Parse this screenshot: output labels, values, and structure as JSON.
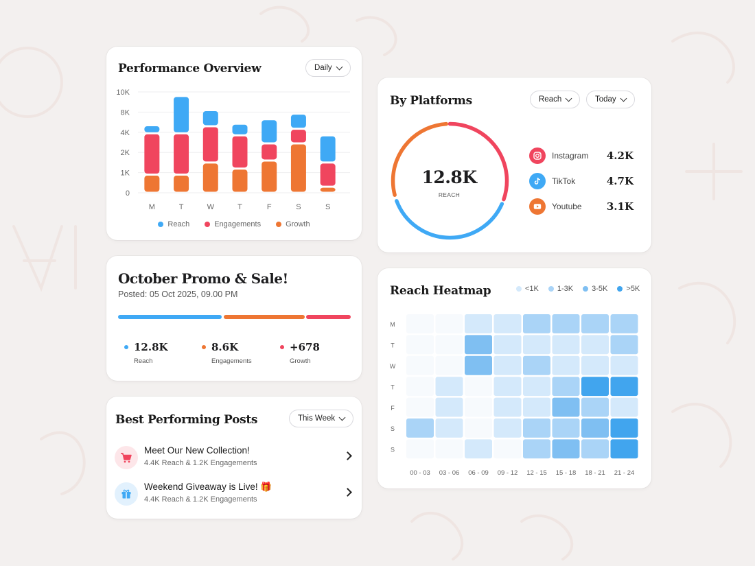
{
  "performance": {
    "title": "Performance Overview",
    "filter": "Daily",
    "legend": [
      {
        "label": "Reach",
        "color": "#3fa9f5"
      },
      {
        "label": "Engagements",
        "color": "#f0455e"
      },
      {
        "label": "Growth",
        "color": "#ee7633"
      }
    ]
  },
  "chart_data": {
    "type": "bar",
    "stacked": true,
    "categories": [
      "M",
      "T",
      "W",
      "T",
      "F",
      "S",
      "S"
    ],
    "yticks": [
      "10K",
      "8K",
      "4K",
      "2K",
      "1K",
      "0"
    ],
    "series": [
      {
        "name": "Growth",
        "color": "#ee7633",
        "values": [
          0.9,
          0.9,
          1.5,
          1.2,
          1.6,
          2.9,
          0.3
        ]
      },
      {
        "name": "Engagements",
        "color": "#f0455e",
        "values": [
          3.0,
          3.0,
          3.7,
          2.5,
          1.3,
          1.8,
          1.2
        ]
      },
      {
        "name": "Reach",
        "color": "#3fa9f5",
        "values": [
          1.5,
          5.7,
          3.0,
          2.0,
          3.7,
          3.0,
          2.2
        ]
      }
    ],
    "ylabel": "",
    "xlabel": "",
    "grid": true,
    "legend_position": "bottom"
  },
  "platforms": {
    "title": "By Platforms",
    "metric_filter": "Reach",
    "time_filter": "Today",
    "total": "12.8K",
    "total_label": "REACH",
    "items": [
      {
        "name": "Instagram",
        "value": "4.2K",
        "color": "#f0455e",
        "icon": "instagram-icon"
      },
      {
        "name": "TikTok",
        "value": "4.7K",
        "color": "#3fa9f5",
        "icon": "tiktok-icon"
      },
      {
        "name": "Youtube",
        "value": "3.1K",
        "color": "#ee7633",
        "icon": "youtube-icon"
      }
    ]
  },
  "promo": {
    "title": "October Promo & Sale!",
    "posted": "Posted: 05 Oct 2025, 09.00 PM",
    "stats": [
      {
        "value": "12.8K",
        "label": "Reach",
        "color": "#3fa9f5"
      },
      {
        "value": "8.6K",
        "label": "Engagements",
        "color": "#ee7633"
      },
      {
        "value": "+678",
        "label": "Growth",
        "color": "#f0455e"
      }
    ]
  },
  "posts": {
    "title": "Best Performing Posts",
    "filter": "This Week",
    "items": [
      {
        "title": "Meet Our New Collection!",
        "stats": "4.4K Reach & 1.2K Engagements",
        "icon": "shopping-cart-icon"
      },
      {
        "title": "Weekend Giveaway is Live! 🎁",
        "stats": "4.4K Reach & 1.2K Engagements",
        "icon": "gift-icon"
      }
    ]
  },
  "heatmap": {
    "title": "Reach Heatmap",
    "legend": [
      {
        "label": "<1K",
        "color": "#d4e9fb"
      },
      {
        "label": "1-3K",
        "color": "#aad4f7"
      },
      {
        "label": "3-5K",
        "color": "#7fbff2"
      },
      {
        "label": ">5K",
        "color": "#41a5ee"
      }
    ],
    "rows": [
      "M",
      "T",
      "W",
      "T",
      "F",
      "S",
      "S"
    ],
    "cols": [
      "00 - 03",
      "03 - 06",
      "06 - 09",
      "09 - 12",
      "12 - 15",
      "15 - 18",
      "18 - 21",
      "21 - 24"
    ],
    "levels": [
      [
        0,
        0,
        2,
        2,
        3,
        3,
        3,
        3
      ],
      [
        0,
        0,
        4,
        2,
        2,
        2,
        2,
        3
      ],
      [
        0,
        0,
        4,
        2,
        3,
        2,
        2,
        2
      ],
      [
        0,
        2,
        0,
        2,
        2,
        3,
        5,
        5
      ],
      [
        0,
        2,
        0,
        2,
        2,
        4,
        3,
        2
      ],
      [
        3,
        2,
        0,
        2,
        3,
        3,
        4,
        5
      ],
      [
        0,
        0,
        2,
        0,
        3,
        4,
        3,
        5
      ]
    ]
  }
}
